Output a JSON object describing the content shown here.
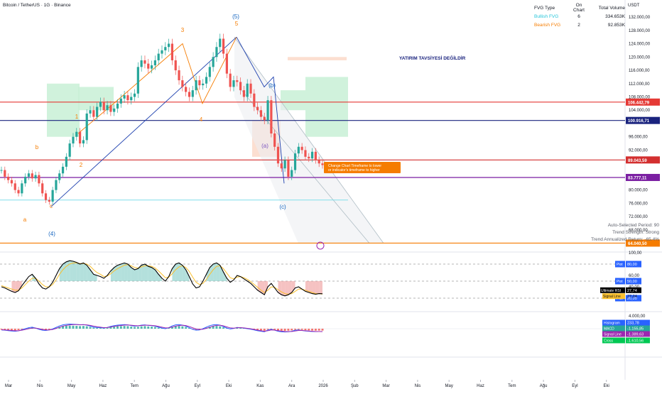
{
  "header": {
    "title": "Bitcoin / TetherUS · 1G · Binance",
    "currency": "USDT"
  },
  "fvg_table": {
    "headers": [
      "FVG Type",
      "On Chart",
      "Total Volume"
    ],
    "rows": [
      {
        "type": "Bullish FVG",
        "on_chart": "6",
        "volume": "334.653K",
        "color": "#26c6da"
      },
      {
        "type": "Bearish FVG",
        "on_chart": "2",
        "volume": "92.853K",
        "color": "#f57c00"
      }
    ]
  },
  "annotation": "YATIRIM TAVSİYESİ DEĞİLDİR",
  "warning_box": "Change Chart Timeframe to lower or indicator's timeframe to higher",
  "period_info": [
    "Auto-Selected Period: 90",
    "Trend Strength: Strong",
    "Trend Annualized Return: -65.4%"
  ],
  "chart_data": {
    "type": "line",
    "title": "Bitcoin / TetherUS · 1G · Binance",
    "x_ticks": [
      "Mar",
      "Nis",
      "May",
      "Haz",
      "Tem",
      "Ağu",
      "Eyl",
      "Eki",
      "Kas",
      "Ara",
      "2026",
      "Şub",
      "Mar",
      "Nis",
      "May",
      "Haz",
      "Tem",
      "Ağu",
      "Eyl",
      "Eki"
    ],
    "price_axis": {
      "ticks": [
        "132.000,00",
        "128.000,00",
        "124.000,00",
        "120.000,00",
        "116.000,00",
        "112.000,00",
        "108.000,00",
        "104.000,00",
        "96.000,00",
        "92.000,00",
        "80.000,00",
        "76.000,00",
        "72.000,00",
        "68.000,00"
      ],
      "ylim": [
        62000,
        135000
      ]
    },
    "price_series": {
      "name": "BTCUSDT",
      "values": [
        86000,
        84000,
        83000,
        82000,
        80000,
        79000,
        82000,
        84000,
        85000,
        83500,
        84500,
        82000,
        79000,
        77000,
        76500,
        80000,
        83000,
        85000,
        87000,
        90000,
        94000,
        96000,
        97500,
        94000,
        95000,
        103000,
        104000,
        102000,
        105000,
        106500,
        104000,
        105500,
        103500,
        104500,
        106000,
        107500,
        108500,
        107000,
        108000,
        109000,
        117000,
        119000,
        118000,
        116500,
        117500,
        119000,
        121000,
        122000,
        123000,
        124000,
        119000,
        116000,
        113000,
        111000,
        109500,
        108000,
        110000,
        113000,
        111500,
        112000,
        114000,
        117000,
        120000,
        123000,
        125500,
        121000,
        115000,
        111000,
        113000,
        112500,
        110000,
        108000,
        112000,
        109000,
        105000,
        104000,
        102000,
        101000,
        107000,
        97000,
        93000,
        88000,
        86500,
        89000,
        84000,
        86000,
        91000,
        93000,
        92000,
        90000,
        89500,
        91500,
        89000,
        88000,
        87500
      ]
    },
    "bullish_fvg_zones": 6,
    "bearish_fvg_zones": 2,
    "price_lines": [
      {
        "value": 106442.79,
        "label": "106.442,79",
        "color": "#e53935"
      },
      {
        "value": 100916.71,
        "label": "100.916,71",
        "color": "#1a237e"
      },
      {
        "value": 89043.59,
        "label": "89.043,59",
        "color": "#d32f2f"
      },
      {
        "value": 83777.11,
        "label": "83.777,11",
        "color": "#7b1fa2"
      },
      {
        "value": 64040.5,
        "label": "64.040,50",
        "color": "#f57c00"
      }
    ],
    "elliott_labels": [
      {
        "text": "(5)",
        "color": "#1565c0"
      },
      {
        "text": "5",
        "color": "#f57c00"
      },
      {
        "text": "3",
        "color": "#f57c00"
      },
      {
        "text": "4",
        "color": "#f57c00"
      },
      {
        "text": "1",
        "color": "#f57c00"
      },
      {
        "text": "2",
        "color": "#f57c00"
      },
      {
        "text": "b",
        "color": "#f57c00"
      },
      {
        "text": "a",
        "color": "#f57c00"
      },
      {
        "text": "c",
        "color": "#f57c00"
      },
      {
        "text": "(4)",
        "color": "#1565c0"
      },
      {
        "text": "(b)",
        "color": "#1565c0"
      },
      {
        "text": "(a)",
        "color": "#7e57c2"
      },
      {
        "text": "(c)",
        "color": "#1565c0"
      }
    ],
    "rsi": {
      "axis_ticks": [
        "100,00",
        "60,00",
        "40,00",
        "20,00"
      ],
      "ylim": [
        0,
        100
      ],
      "levels": [
        {
          "label": "Plot",
          "value": 80,
          "text": "80,00"
        },
        {
          "label": "Plot",
          "value": 50,
          "text": "50,00"
        },
        {
          "label": "Plot",
          "value": 20,
          "text": "20,00"
        }
      ],
      "ultimate_rsi": {
        "label": "Ultimate RSI",
        "text": "27,74",
        "value": 27.74
      },
      "signal_line": {
        "label": "Signal Line",
        "text": "27,24",
        "value": 27.24
      },
      "values": [
        40,
        38,
        35,
        32,
        30,
        33,
        42,
        50,
        58,
        62,
        55,
        45,
        38,
        36,
        40,
        48,
        60,
        72,
        80,
        84,
        86,
        85,
        83,
        80,
        82,
        78,
        70,
        62,
        60,
        58,
        55,
        60,
        68,
        74,
        78,
        80,
        82,
        80,
        74,
        70,
        72,
        78,
        80,
        76,
        74,
        70,
        62,
        55,
        50,
        58,
        72,
        80,
        82,
        78,
        70,
        58,
        45,
        38,
        40,
        50,
        62,
        74,
        80,
        82,
        78,
        66,
        55,
        48,
        52,
        60,
        58,
        54,
        50,
        46,
        40,
        34,
        30,
        26,
        40,
        46,
        38,
        30,
        26,
        24,
        26,
        30,
        38,
        40,
        36,
        32,
        30,
        28,
        27,
        28,
        27.74
      ],
      "signal": [
        42,
        40,
        38,
        36,
        34,
        34,
        38,
        44,
        50,
        55,
        55,
        50,
        44,
        40,
        40,
        44,
        52,
        62,
        70,
        76,
        80,
        82,
        82,
        81,
        81,
        80,
        76,
        70,
        65,
        62,
        58,
        59,
        63,
        68,
        72,
        75,
        78,
        79,
        77,
        74,
        73,
        75,
        77,
        77,
        76,
        73,
        68,
        62,
        56,
        57,
        63,
        70,
        75,
        77,
        74,
        67,
        57,
        48,
        44,
        46,
        53,
        62,
        70,
        76,
        77,
        72,
        64,
        56,
        54,
        57,
        58,
        56,
        53,
        49,
        44,
        39,
        34,
        30,
        34,
        40,
        39,
        35,
        31,
        28,
        27,
        28,
        32,
        36,
        36,
        34,
        32,
        30,
        28,
        28,
        27.24
      ]
    },
    "macd": {
      "axis_ticks": [
        "4.000,00"
      ],
      "histogram": {
        "label": "Histogram",
        "text": "233,78",
        "value": 233.78
      },
      "macd_line": {
        "label": "MACD",
        "text": "-1.155,85",
        "value": -1155.85
      },
      "signal_line": {
        "label": "Signal Line",
        "text": "-1.389,63",
        "value": -1389.63
      },
      "cross": {
        "label": "Cross",
        "text": "-1.610,56",
        "value": -1610.56
      }
    }
  }
}
